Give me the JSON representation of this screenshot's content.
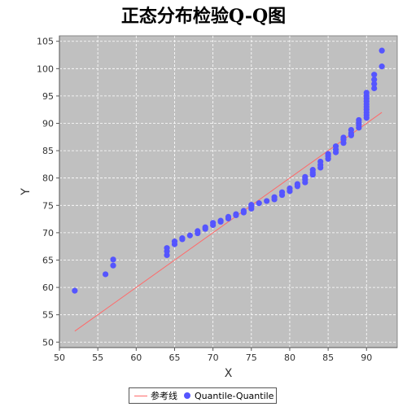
{
  "chart_data": {
    "type": "scatter",
    "title": "正态分布检验Q-Q图",
    "xlabel": "X",
    "ylabel": "Y",
    "xlim": [
      50,
      94
    ],
    "ylim": [
      49,
      106
    ],
    "x_ticks": [
      50,
      55,
      60,
      65,
      70,
      75,
      80,
      85,
      90
    ],
    "y_ticks": [
      50,
      55,
      60,
      65,
      70,
      75,
      80,
      85,
      90,
      95,
      100,
      105
    ],
    "grid": true,
    "legend_position": "bottom",
    "colors": {
      "plot_background": "#c0c0c0",
      "grid": "#ffffff",
      "reference_line": "#ff6a6a",
      "points": "#5555ff"
    },
    "series": [
      {
        "name": "参考线",
        "type": "line",
        "points": [
          [
            52,
            52
          ],
          [
            92,
            92
          ]
        ]
      },
      {
        "name": "Quantile-Quantile",
        "type": "scatter",
        "points": [
          [
            52,
            59.4
          ],
          [
            56,
            62.4
          ],
          [
            57,
            64.0
          ],
          [
            57,
            65.1
          ],
          [
            64,
            65.9
          ],
          [
            64,
            66.6
          ],
          [
            64,
            67.2
          ],
          [
            65,
            67.9
          ],
          [
            65,
            68.4
          ],
          [
            66,
            68.8
          ],
          [
            66,
            69.0
          ],
          [
            67,
            69.5
          ],
          [
            68,
            69.9
          ],
          [
            68,
            70.3
          ],
          [
            69,
            70.7
          ],
          [
            69,
            71.0
          ],
          [
            70,
            71.4
          ],
          [
            70,
            71.8
          ],
          [
            71,
            72.0
          ],
          [
            71,
            72.2
          ],
          [
            72,
            72.6
          ],
          [
            72,
            72.9
          ],
          [
            73,
            73.2
          ],
          [
            73,
            73.4
          ],
          [
            74,
            73.7
          ],
          [
            74,
            74.0
          ],
          [
            75,
            74.4
          ],
          [
            75,
            74.8
          ],
          [
            75,
            75.1
          ],
          [
            76,
            75.4
          ],
          [
            77,
            75.8
          ],
          [
            78,
            76.1
          ],
          [
            78,
            76.5
          ],
          [
            79,
            76.9
          ],
          [
            79,
            77.4
          ],
          [
            80,
            77.6
          ],
          [
            80,
            78.1
          ],
          [
            81,
            78.5
          ],
          [
            81,
            78.9
          ],
          [
            82,
            79.2
          ],
          [
            82,
            79.7
          ],
          [
            82,
            80.2
          ],
          [
            83,
            80.6
          ],
          [
            83,
            81.0
          ],
          [
            83,
            81.5
          ],
          [
            84,
            81.9
          ],
          [
            84,
            82.4
          ],
          [
            84,
            83.0
          ],
          [
            85,
            83.5
          ],
          [
            85,
            84.0
          ],
          [
            85,
            84.4
          ],
          [
            86,
            84.7
          ],
          [
            86,
            85.2
          ],
          [
            86,
            85.8
          ],
          [
            87,
            86.4
          ],
          [
            87,
            87.0
          ],
          [
            87,
            87.4
          ],
          [
            88,
            87.8
          ],
          [
            88,
            88.2
          ],
          [
            88,
            88.8
          ],
          [
            89,
            89.2
          ],
          [
            89,
            89.7
          ],
          [
            89,
            90.1
          ],
          [
            89,
            90.6
          ],
          [
            90,
            91.0
          ],
          [
            90,
            91.5
          ],
          [
            90,
            92.0
          ],
          [
            90,
            92.5
          ],
          [
            90,
            93.0
          ],
          [
            90,
            93.5
          ],
          [
            90,
            94.0
          ],
          [
            90,
            94.5
          ],
          [
            90,
            95.0
          ],
          [
            90,
            95.6
          ],
          [
            91,
            96.4
          ],
          [
            91,
            97.2
          ],
          [
            91,
            98.0
          ],
          [
            91,
            98.9
          ],
          [
            92,
            100.4
          ],
          [
            92,
            103.3
          ]
        ]
      }
    ]
  }
}
